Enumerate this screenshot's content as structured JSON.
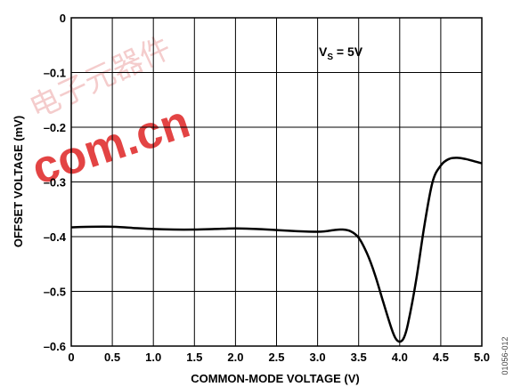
{
  "chart_data": {
    "type": "line",
    "xlabel": "COMMON-MODE VOLTAGE (V)",
    "ylabel": "OFFSET VOLTAGE (mV)",
    "xlim": [
      0,
      5.0
    ],
    "ylim": [
      -0.6,
      0
    ],
    "grid": true,
    "x_ticks": [
      "0",
      "0.5",
      "1.0",
      "1.5",
      "2.0",
      "2.5",
      "3.0",
      "3.5",
      "4.0",
      "4.5",
      "5.0"
    ],
    "y_ticks": [
      "0",
      "–0.1",
      "–0.2",
      "–0.3",
      "–0.4",
      "–0.5",
      "–0.6"
    ],
    "annotation": {
      "main": "V",
      "sub": "S",
      "rest": " = 5V"
    },
    "series": [
      {
        "x": [
          0,
          0.25,
          0.5,
          0.75,
          1.0,
          1.25,
          1.5,
          1.75,
          2.0,
          2.25,
          2.5,
          2.75,
          3.0,
          3.1,
          3.2,
          3.3,
          3.4,
          3.5,
          3.6,
          3.7,
          3.8,
          3.9,
          3.95,
          4.0,
          4.05,
          4.1,
          4.2,
          4.3,
          4.4,
          4.5,
          4.6,
          4.7,
          4.8,
          4.9,
          5.0
        ],
        "y": [
          -0.383,
          -0.382,
          -0.382,
          -0.384,
          -0.386,
          -0.387,
          -0.387,
          -0.386,
          -0.385,
          -0.386,
          -0.388,
          -0.39,
          -0.391,
          -0.39,
          -0.388,
          -0.387,
          -0.39,
          -0.402,
          -0.43,
          -0.47,
          -0.52,
          -0.568,
          -0.586,
          -0.592,
          -0.585,
          -0.56,
          -0.48,
          -0.38,
          -0.3,
          -0.27,
          -0.258,
          -0.256,
          -0.258,
          -0.262,
          -0.266
        ]
      }
    ]
  },
  "figure_id": "01056-012",
  "watermark": {
    "text": "com.cn",
    "cn": "电子元器件"
  }
}
